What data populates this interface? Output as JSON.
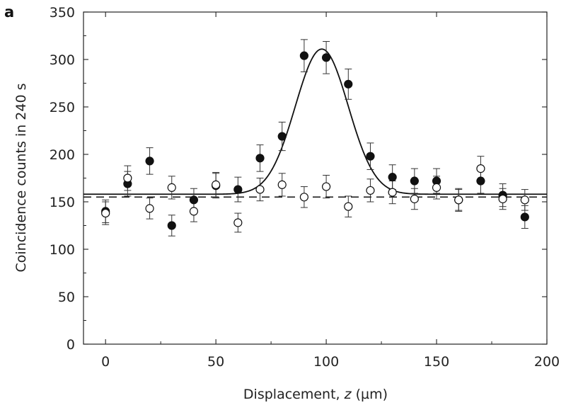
{
  "chart_data": {
    "type": "scatter",
    "panel_label": "a",
    "xlabel_prefix": "Displacement, ",
    "xlabel_var": "z",
    "xlabel_suffix": " (µm)",
    "ylabel": "Coincidence counts in 240 s",
    "xlim": [
      -10,
      200
    ],
    "ylim": [
      0,
      350
    ],
    "xticks": [
      0,
      50,
      100,
      150,
      200
    ],
    "yticks": [
      0,
      50,
      100,
      150,
      200,
      250,
      300,
      350
    ],
    "grid": false,
    "legend": "none",
    "series": [
      {
        "marker": "filled-circle",
        "x": [
          0,
          10,
          20,
          30,
          40,
          50,
          60,
          70,
          80,
          90,
          100,
          110,
          120,
          130,
          140,
          150,
          160,
          170,
          180,
          190
        ],
        "y": [
          140,
          169,
          193,
          125,
          152,
          167,
          163,
          196,
          219,
          304,
          302,
          274,
          198,
          176,
          172,
          172,
          152,
          172,
          157,
          134
        ],
        "err": [
          12,
          13,
          14,
          11,
          12,
          13,
          13,
          14,
          15,
          17,
          17,
          16,
          14,
          13,
          13,
          13,
          12,
          13,
          12,
          12
        ]
      },
      {
        "marker": "open-circle",
        "x": [
          0,
          10,
          20,
          30,
          40,
          50,
          60,
          70,
          80,
          90,
          100,
          110,
          120,
          130,
          140,
          150,
          160,
          170,
          180,
          190
        ],
        "y": [
          138,
          175,
          143,
          165,
          140,
          168,
          128,
          163,
          168,
          155,
          166,
          145,
          162,
          160,
          153,
          165,
          152,
          185,
          153,
          152
        ],
        "err": [
          12,
          13,
          11,
          12,
          11,
          13,
          10,
          12,
          12,
          11,
          12,
          11,
          12,
          12,
          11,
          12,
          11,
          13,
          11,
          11
        ]
      }
    ],
    "fit_curves": [
      {
        "style": "solid",
        "model": "gaussian",
        "baseline": 158,
        "amplitude": 153,
        "center": 98,
        "sigma": 12
      },
      {
        "style": "dashed",
        "model": "constant",
        "baseline": 155
      }
    ]
  }
}
